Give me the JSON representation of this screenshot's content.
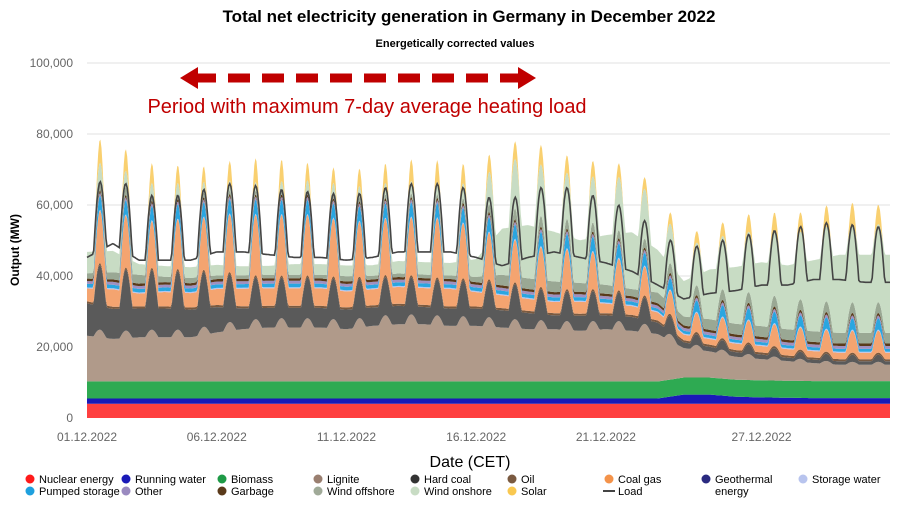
{
  "chart_data": {
    "type": "area",
    "title": "Total net electricity generation in Germany in December 2022",
    "subtitle": "Energetically corrected values",
    "xlabel": "Date (CET)",
    "ylabel": "Output (MW)",
    "ylim": [
      0,
      100000
    ],
    "yticks": [
      0,
      20000,
      40000,
      60000,
      80000,
      100000
    ],
    "ytick_labels": [
      "0",
      "20,000",
      "40,000",
      "60,000",
      "80,000",
      "100,000"
    ],
    "xlim": [
      1,
      31
    ],
    "xticks": [
      1,
      6,
      11,
      16,
      21,
      27
    ],
    "xtick_labels": [
      "01.12.2022",
      "06.12.2022",
      "11.12.2022",
      "16.12.2022",
      "21.12.2022",
      "27.12.2022"
    ],
    "annotation": {
      "text": "Period with maximum 7-day average heating load",
      "x_start": 3.5,
      "x_end": 16.5,
      "y": 95000,
      "color": "#c00000"
    },
    "days": [
      1,
      2,
      3,
      4,
      5,
      6,
      7,
      8,
      9,
      10,
      11,
      12,
      13,
      14,
      15,
      16,
      17,
      18,
      19,
      20,
      21,
      22,
      23,
      24,
      25,
      26,
      27,
      28,
      29,
      30,
      31
    ],
    "series": [
      {
        "name": "Nuclear energy",
        "color": "#ff4040",
        "values": [
          4000,
          4000,
          4000,
          4000,
          4000,
          4000,
          4000,
          4000,
          4000,
          4000,
          4000,
          4000,
          4000,
          4000,
          4000,
          4000,
          4000,
          4000,
          4000,
          4000,
          4000,
          4000,
          4000,
          4000,
          4000,
          4000,
          4000,
          4000,
          4000,
          4000,
          4000
        ]
      },
      {
        "name": "Running water",
        "color": "#1a1ab8",
        "values": [
          1500,
          1500,
          1500,
          1500,
          1500,
          1500,
          1500,
          1500,
          1500,
          1500,
          1500,
          1500,
          1500,
          1500,
          1500,
          1500,
          1500,
          1500,
          1500,
          1500,
          1500,
          1500,
          1500,
          2600,
          2600,
          2000,
          1800,
          1700,
          1600,
          1600,
          1600
        ]
      },
      {
        "name": "Biomass",
        "color": "#2eaa52",
        "values": [
          4800,
          4800,
          4800,
          4800,
          4800,
          4800,
          4800,
          4800,
          4800,
          4800,
          4800,
          4800,
          4800,
          4800,
          4800,
          4800,
          4800,
          4800,
          4800,
          4800,
          4800,
          4800,
          4800,
          4800,
          4800,
          4800,
          4800,
          4800,
          4800,
          4800,
          4800
        ]
      },
      {
        "name": "Lignite",
        "color": "#b09a8a",
        "values": [
          14000,
          13000,
          13500,
          13500,
          13500,
          15000,
          16000,
          16500,
          16500,
          16500,
          16000,
          17000,
          17500,
          17500,
          17000,
          17000,
          16500,
          16000,
          16000,
          15500,
          16000,
          15500,
          14500,
          9000,
          8000,
          7000,
          6500,
          6000,
          5500,
          5000,
          5000
        ]
      },
      {
        "name": "Hard coal",
        "color": "#5a5a5a",
        "values": [
          14000,
          13000,
          12500,
          12500,
          12000,
          11000,
          9000,
          8500,
          8500,
          8500,
          8500,
          8000,
          8000,
          7500,
          7500,
          7500,
          7500,
          7000,
          6000,
          6500,
          6000,
          6000,
          5000,
          2500,
          2000,
          2000,
          2000,
          1500,
          1500,
          1500,
          1500
        ]
      },
      {
        "name": "Oil",
        "color": "#7a5a40",
        "values": [
          600,
          600,
          600,
          600,
          600,
          600,
          600,
          600,
          600,
          600,
          600,
          600,
          600,
          600,
          600,
          600,
          600,
          600,
          600,
          600,
          600,
          600,
          600,
          600,
          600,
          600,
          600,
          600,
          600,
          600,
          600
        ]
      },
      {
        "name": "Coal gas",
        "color": "#f4a470",
        "values": [
          8000,
          11000,
          8000,
          9000,
          9000,
          10000,
          11000,
          11000,
          11000,
          11000,
          10000,
          10000,
          10500,
          10500,
          11000,
          9000,
          8000,
          7500,
          7000,
          7500,
          6000,
          5500,
          5000,
          3500,
          3500,
          4000,
          4000,
          4000,
          4000,
          4000,
          4000
        ]
      },
      {
        "name": "Geothermal energy",
        "color": "#2a2a80",
        "values": [
          0,
          0,
          0,
          0,
          0,
          0,
          0,
          0,
          0,
          0,
          0,
          0,
          0,
          0,
          0,
          0,
          0,
          0,
          0,
          0,
          0,
          0,
          0,
          0,
          0,
          0,
          0,
          0,
          0,
          0,
          0
        ]
      },
      {
        "name": "Storage water",
        "color": "#b8c4ee",
        "values": [
          300,
          300,
          300,
          300,
          300,
          300,
          300,
          300,
          300,
          300,
          300,
          300,
          300,
          300,
          300,
          300,
          300,
          300,
          300,
          300,
          300,
          300,
          300,
          300,
          300,
          300,
          300,
          300,
          300,
          300,
          300
        ]
      },
      {
        "name": "Pumped storage",
        "color": "#2aa6e0",
        "values": [
          2500,
          2500,
          2500,
          2500,
          2500,
          2500,
          2500,
          2500,
          2500,
          2500,
          2500,
          2500,
          2500,
          2500,
          2500,
          2500,
          2500,
          2500,
          2500,
          2500,
          2500,
          2500,
          2000,
          2000,
          2000,
          2000,
          2000,
          2000,
          2000,
          2000,
          2000
        ]
      },
      {
        "name": "Other",
        "color": "#a090c0",
        "values": [
          800,
          800,
          800,
          800,
          800,
          800,
          800,
          800,
          800,
          800,
          800,
          800,
          800,
          800,
          800,
          800,
          800,
          800,
          800,
          800,
          800,
          800,
          800,
          800,
          800,
          800,
          800,
          800,
          800,
          800,
          800
        ]
      },
      {
        "name": "Garbage",
        "color": "#5a3a1a",
        "values": [
          700,
          700,
          700,
          700,
          700,
          700,
          700,
          700,
          700,
          700,
          700,
          700,
          700,
          700,
          700,
          700,
          700,
          700,
          700,
          700,
          700,
          700,
          700,
          700,
          700,
          700,
          700,
          700,
          700,
          700,
          700
        ]
      },
      {
        "name": "Wind offshore",
        "color": "#9aa894",
        "values": [
          1500,
          2000,
          2500,
          1500,
          1500,
          1000,
          1000,
          1000,
          1000,
          1000,
          1500,
          1000,
          1000,
          1000,
          1000,
          1500,
          3000,
          3000,
          3000,
          2500,
          2500,
          2000,
          3000,
          2500,
          3000,
          3000,
          3000,
          3000,
          3000,
          3000,
          3000
        ]
      },
      {
        "name": "Wind onshore",
        "color": "#c8dcc4",
        "values": [
          6000,
          6000,
          3000,
          3000,
          3000,
          3000,
          2500,
          2500,
          3000,
          3000,
          3000,
          3000,
          3500,
          3500,
          3500,
          5000,
          13000,
          15000,
          14000,
          12000,
          14000,
          16000,
          12000,
          10000,
          14000,
          16000,
          18000,
          18000,
          20000,
          22000,
          22000
        ]
      },
      {
        "name": "Solar",
        "color": "#f9d070",
        "values": [
          3000,
          3000,
          2500,
          2500,
          2000,
          2000,
          3000,
          3000,
          2500,
          2000,
          2000,
          2500,
          2500,
          3000,
          2500,
          2500,
          2000,
          2500,
          2500,
          2000,
          2000,
          1500,
          1500,
          1500,
          1500,
          2000,
          2500,
          2500,
          2500,
          3000,
          2500
        ]
      },
      {
        "name": "Load",
        "color": "#444444",
        "values": [
          58000,
          63000,
          57000,
          57000,
          57000,
          60000,
          60000,
          59000,
          58000,
          58000,
          57000,
          58000,
          60000,
          60000,
          60000,
          58000,
          55000,
          58000,
          60000,
          58000,
          56000,
          53000,
          48000,
          43000,
          45000,
          46000,
          48000,
          48000,
          50000,
          50000,
          49000
        ]
      }
    ],
    "legend": [
      {
        "name": "Nuclear energy",
        "symbol": "dot",
        "color": "#ff1a1a"
      },
      {
        "name": "Running water",
        "symbol": "dot",
        "color": "#1a1ab8"
      },
      {
        "name": "Biomass",
        "symbol": "dot",
        "color": "#1e9a46"
      },
      {
        "name": "Lignite",
        "symbol": "dot",
        "color": "#9a7f70"
      },
      {
        "name": "Hard coal",
        "symbol": "dot",
        "color": "#333333"
      },
      {
        "name": "Oil",
        "symbol": "dot",
        "color": "#7a5a40"
      },
      {
        "name": "Coal gas",
        "symbol": "dot",
        "color": "#f4934a"
      },
      {
        "name": "Geothermal",
        "symbol": "dot",
        "color": "#2a2a80"
      },
      {
        "name": "energy",
        "symbol": "none",
        "color": ""
      },
      {
        "name": "Storage water",
        "symbol": "dot",
        "color": "#b8c4ee"
      },
      {
        "name": "Pumped storage",
        "symbol": "dot",
        "color": "#1ea0de"
      },
      {
        "name": "Other",
        "symbol": "dot",
        "color": "#9a8ac0"
      },
      {
        "name": "Garbage",
        "symbol": "dot",
        "color": "#5a3a1a"
      },
      {
        "name": "Wind offshore",
        "symbol": "dot",
        "color": "#a0aa98"
      },
      {
        "name": "Wind onshore",
        "symbol": "dot",
        "color": "#c8dcc4"
      },
      {
        "name": "Solar",
        "symbol": "dot",
        "color": "#f9c850"
      },
      {
        "name": "Load",
        "symbol": "line",
        "color": "#444444"
      }
    ]
  }
}
